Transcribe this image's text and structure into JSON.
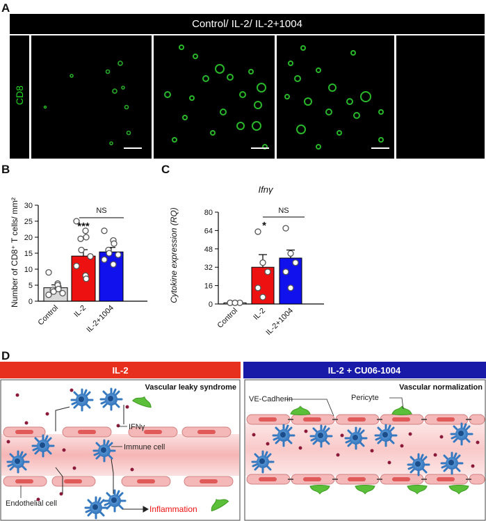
{
  "panel_a": {
    "letter": "A",
    "header": "Control/ IL-2/ IL-2+1004",
    "stain_label": "CD8",
    "stain_color": "#22dd22"
  },
  "panel_b": {
    "letter": "B",
    "significance_star": "***",
    "ns_label": "NS"
  },
  "panel_c": {
    "letter": "C",
    "gene_title": "Ifnγ",
    "significance_star": "*",
    "ns_label": "NS"
  },
  "chart_data": [
    {
      "type": "bar",
      "panel": "B",
      "categories": [
        "Control",
        "IL-2",
        "IL-2+1004"
      ],
      "values": [
        4.2,
        14.1,
        15.4
      ],
      "sem": [
        0.9,
        2.0,
        1.4
      ],
      "colors": [
        "#d9d9d9",
        "#ee1111",
        "#1111ee"
      ],
      "points": [
        [
          9,
          5.5,
          4.5,
          3.5,
          3,
          2.5,
          2,
          5,
          3.8
        ],
        [
          25,
          22,
          20,
          19.5,
          16,
          14,
          11,
          8,
          7
        ],
        [
          22,
          19,
          18,
          16,
          15,
          14.5,
          13,
          11.5
        ]
      ],
      "ylabel": "Number of CD8⁺ T cells/ mm²",
      "ylim": [
        0,
        30
      ],
      "yticks": [
        0,
        5,
        10,
        15,
        20,
        25,
        30
      ]
    },
    {
      "type": "bar",
      "panel": "C",
      "categories": [
        "Control",
        "IL-2",
        "IL-2+1004"
      ],
      "values": [
        1,
        32,
        40
      ],
      "sem": [
        0.5,
        11,
        7
      ],
      "colors": [
        "#d9d9d9",
        "#ee1111",
        "#1111ee"
      ],
      "points": [
        [
          1,
          1,
          1,
          1,
          1
        ],
        [
          63,
          36,
          28,
          14,
          6
        ],
        [
          66,
          44,
          36,
          28,
          14
        ]
      ],
      "ylabel": "Cytokine expression (RQ)",
      "ylim": [
        0,
        80
      ],
      "yticks": [
        0,
        16,
        32,
        48,
        64,
        80
      ]
    }
  ],
  "panel_d": {
    "letter": "D",
    "left_header": "IL-2",
    "right_header": "IL-2 + CU06-1004",
    "left_header_color": "#e8301e",
    "right_header_color": "#1a1aa8",
    "left_title": "Vascular leaky syndrome",
    "right_title": "Vascular normalization",
    "labels": {
      "ifng": "IFNγ",
      "immune_cell": "Immune cell",
      "endothelial_cell": "Endothelial cell",
      "inflammation": "Inflammation",
      "ve_cadherin": "VE-Cadherin",
      "pericyte": "Pericyte"
    },
    "inflammation_color": "#ee1111"
  }
}
